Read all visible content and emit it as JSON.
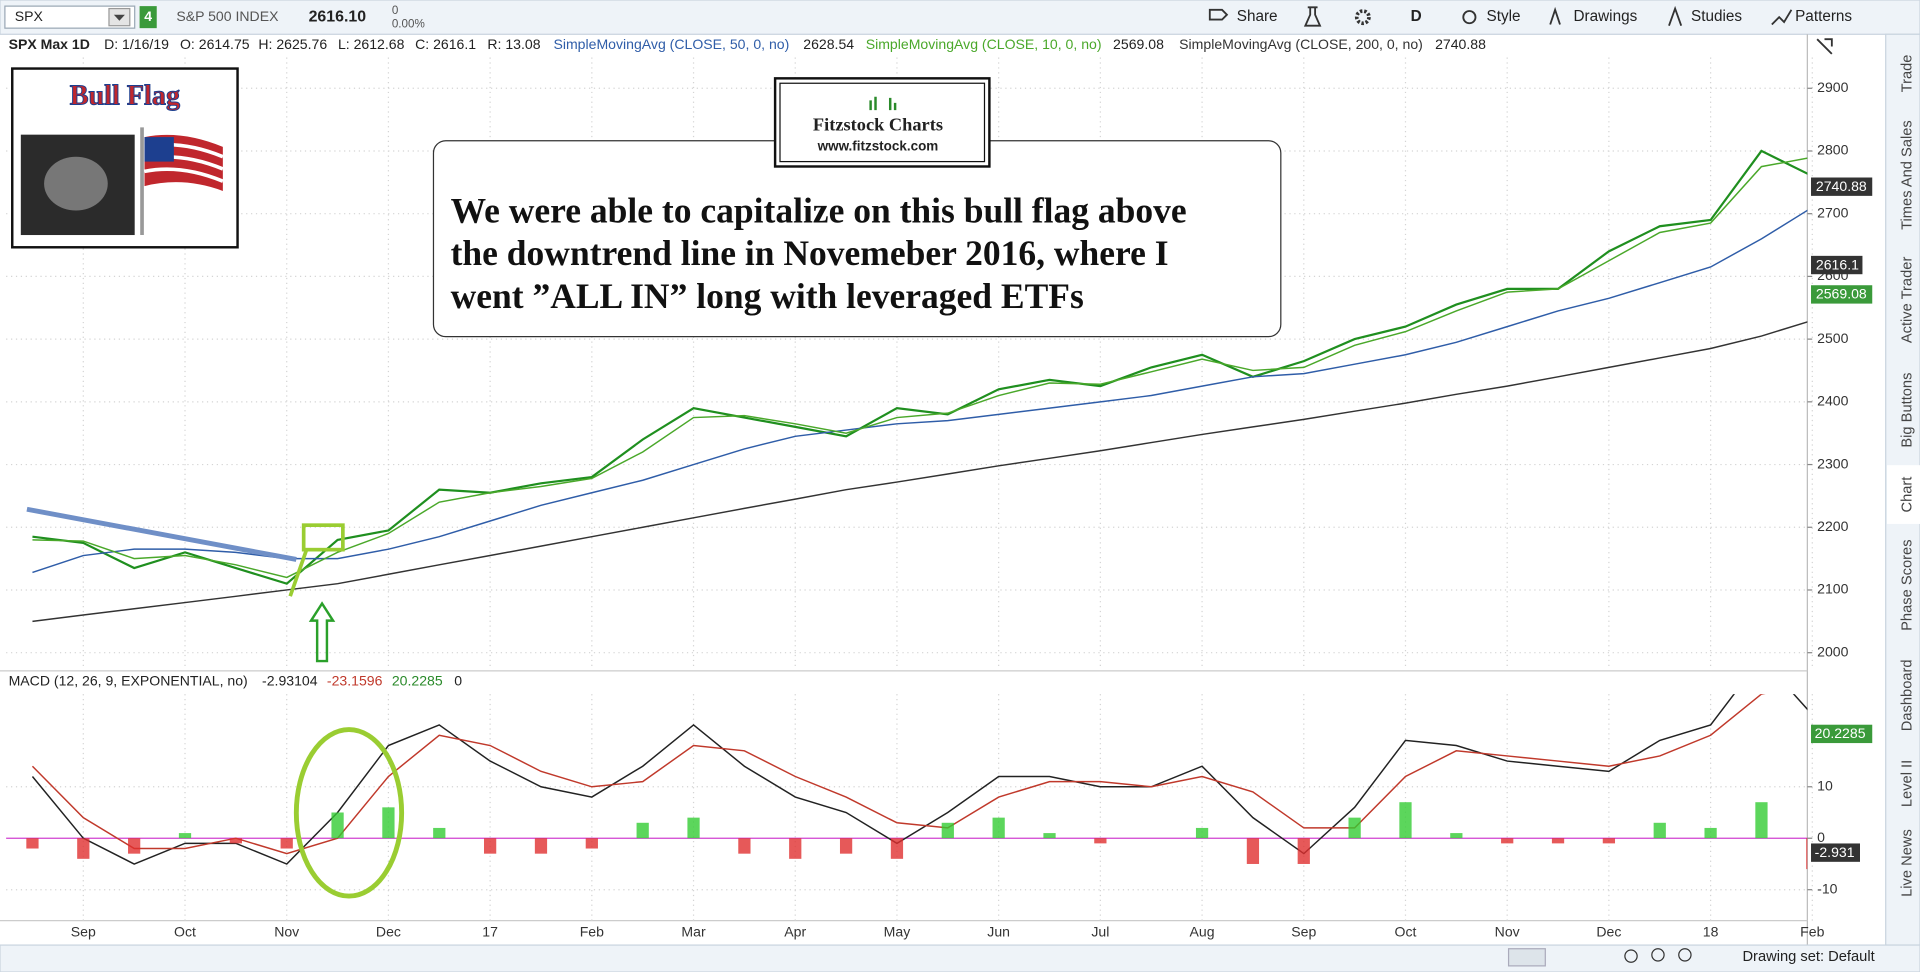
{
  "toolbar": {
    "symbol": "SPX",
    "link": "4",
    "description": "S&P 500 INDEX",
    "last": "2616.10",
    "change": "0",
    "change_pct": "0.00%",
    "buttons": [
      "Share",
      "D",
      "Style",
      "Drawings",
      "Studies",
      "Patterns"
    ]
  },
  "info": {
    "title": "SPX Max 1D",
    "fields": [
      "D: 1/16/19",
      "O: 2614.75",
      "H: 2625.76",
      "L: 2612.68",
      "C: 2616.1",
      "R: 13.08"
    ],
    "study_values": [
      "2628.54",
      "2569.08",
      "2740.88"
    ]
  },
  "price_badges": [
    "2740.88",
    "2616.1",
    "2569.08"
  ],
  "macd": {
    "title": "MACD (12, 26, 9, EXPONENTIAL, no)",
    "values": [
      "-2.93104",
      "-23.1596",
      "20.2285",
      "0"
    ],
    "badges": [
      "20.2285",
      "-2.931"
    ]
  },
  "annotation": {
    "lines": [
      "We were able to capitalize on this bull flag above",
      "the downtrend line in Novemeber 2016, where I",
      "went ”ALL IN” long with leveraged ETFs"
    ]
  },
  "logos": {
    "bull_flag": "Bull Flag",
    "brand": "Fitzstock Charts",
    "url": "www.fitzstock.com"
  },
  "side_tabs": [
    "Trade",
    "Times And Sales",
    "Active Trader",
    "Big Buttons",
    "Chart",
    "Phase Scores",
    "Dashboard",
    "Level II",
    "Live News"
  ],
  "status": "Drawing set: Default",
  "chart_data": [
    {
      "type": "line",
      "categories": [
        null,
        "Sep",
        null,
        "Oct",
        null,
        "Nov",
        null,
        "Dec",
        null,
        "17",
        null,
        "Feb",
        null,
        "Mar",
        null,
        "Apr",
        null,
        "May",
        null,
        "Jun",
        null,
        "Jul",
        null,
        "Aug",
        null,
        "Sep",
        null,
        "Oct",
        null,
        "Nov",
        null,
        "Dec",
        null,
        "18",
        null,
        "Feb"
      ],
      "ylim": [
        1973,
        2949
      ],
      "yticks": [
        2000,
        2100,
        2200,
        2300,
        2400,
        2500,
        2600,
        2700,
        2800,
        2900
      ],
      "grid": true,
      "series": [
        {
          "name": "SPX",
          "color": "#1f8f1f",
          "values": [
            2185,
            2175,
            2135,
            2160,
            2135,
            2110,
            2180,
            2195,
            2260,
            2255,
            2270,
            2280,
            2340,
            2390,
            2375,
            2360,
            2345,
            2390,
            2380,
            2420,
            2435,
            2425,
            2455,
            2475,
            2440,
            2465,
            2500,
            2520,
            2555,
            2580,
            2580,
            2640,
            2680,
            2690,
            2800,
            2760
          ]
        },
        {
          "name": "SimpleMovingAvg (CLOSE, 50, 0, no)",
          "color": "#2f5da8",
          "values": [
            2128,
            2155,
            2165,
            2165,
            2160,
            2150,
            2150,
            2165,
            2185,
            2210,
            2235,
            2255,
            2275,
            2300,
            2325,
            2345,
            2355,
            2365,
            2370,
            2380,
            2390,
            2400,
            2410,
            2425,
            2440,
            2445,
            2460,
            2475,
            2495,
            2520,
            2545,
            2565,
            2590,
            2615,
            2660,
            2710
          ]
        },
        {
          "name": "SimpleMovingAvg (CLOSE, 10, 0, no)",
          "color": "#4aa82a",
          "values": [
            2180,
            2178,
            2150,
            2155,
            2140,
            2120,
            2160,
            2190,
            2240,
            2255,
            2265,
            2278,
            2320,
            2375,
            2378,
            2365,
            2350,
            2375,
            2382,
            2410,
            2430,
            2428,
            2448,
            2468,
            2450,
            2455,
            2490,
            2512,
            2545,
            2575,
            2580,
            2625,
            2670,
            2685,
            2775,
            2790
          ]
        },
        {
          "name": "SimpleMovingAvg (CLOSE, 200, 0, no)",
          "color": "#333333",
          "values": [
            2050,
            2060,
            2070,
            2080,
            2090,
            2100,
            2110,
            2125,
            2140,
            2155,
            2170,
            2185,
            2200,
            2215,
            2230,
            2245,
            2260,
            2272,
            2285,
            2298,
            2310,
            2322,
            2335,
            2348,
            2360,
            2372,
            2385,
            2398,
            2412,
            2425,
            2440,
            2455,
            2470,
            2485,
            2505,
            2530
          ]
        }
      ]
    },
    {
      "type": "line",
      "ylim": [
        -16,
        28
      ],
      "yticks": [
        -10,
        0,
        10
      ],
      "grid": true,
      "zero_line_color": "#d040d0",
      "series": [
        {
          "color": "#222222",
          "values": [
            12,
            0,
            -5,
            -1,
            -1,
            -5,
            5,
            18,
            22,
            15,
            10,
            8,
            14,
            22,
            14,
            8,
            5,
            -1,
            5,
            12,
            12,
            10,
            10,
            14,
            4,
            -3,
            6,
            19,
            18,
            15,
            14,
            13,
            19,
            22,
            35,
            24
          ]
        },
        {
          "color": "#c0392b",
          "values": [
            14,
            4,
            -2,
            -2,
            0,
            -3,
            0,
            12,
            20,
            18,
            13,
            10,
            11,
            18,
            17,
            12,
            8,
            3,
            2,
            8,
            11,
            11,
            10,
            12,
            9,
            2,
            2,
            12,
            17,
            16,
            15,
            14,
            16,
            20,
            28,
            30
          ]
        },
        {
          "type": "bar",
          "color_up": "#33cc33",
          "color_down": "#e03030",
          "values": [
            -2,
            -4,
            -3,
            1,
            -1,
            -2,
            5,
            6,
            2,
            -3,
            -3,
            -2,
            3,
            4,
            -3,
            -4,
            -3,
            -4,
            3,
            4,
            1,
            -1,
            0,
            2,
            -5,
            -5,
            4,
            7,
            1,
            -1,
            -1,
            -1,
            3,
            2,
            7,
            -6
          ]
        }
      ]
    }
  ]
}
